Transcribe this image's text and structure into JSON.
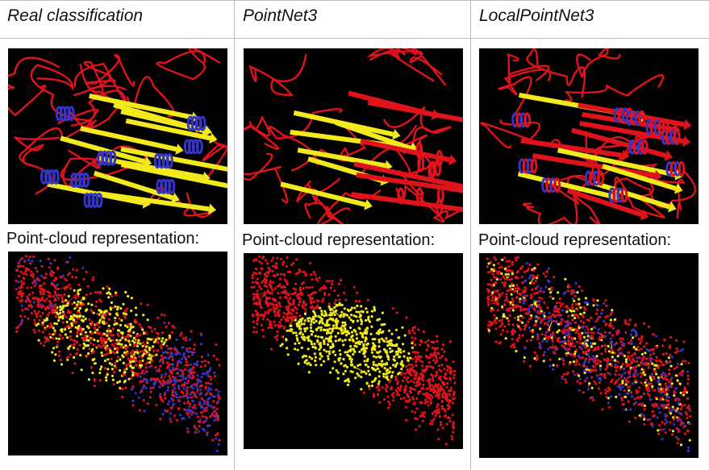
{
  "columns": [
    {
      "title": "Real classification",
      "ribbon_alt": "ribbon model coloured yellow, red and blue",
      "caption": "Point-cloud representation:"
    },
    {
      "title": "PointNet3",
      "ribbon_alt": "ribbon model coloured yellow and red",
      "caption": "Point-cloud representation:"
    },
    {
      "title": "LocalPointNet3",
      "ribbon_alt": "ribbon model coloured red, yellow and blue",
      "caption": "Point-cloud representation:"
    }
  ],
  "colors": {
    "helix": "#e0121c",
    "sheet": "#f2ea1c",
    "turn": "#3434c8",
    "background": "#000000",
    "grid": "#bdbdbd"
  }
}
